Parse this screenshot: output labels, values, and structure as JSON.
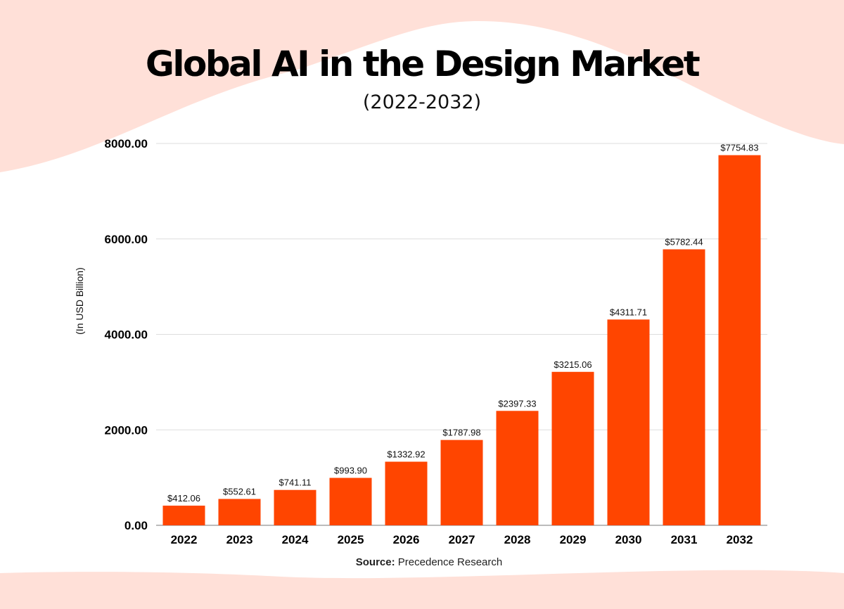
{
  "title": "Global AI in the Design Market",
  "subtitle": "(2022-2032)",
  "source_label": "Source:",
  "source_text": "Precedence Research",
  "colors": {
    "bar": "#FF4500",
    "background_accent": "#FFE0D8",
    "grid": "#DDDDDD"
  },
  "chart_data": {
    "type": "bar",
    "categories": [
      "2022",
      "2023",
      "2024",
      "2025",
      "2026",
      "2027",
      "2028",
      "2029",
      "2030",
      "2031",
      "2032"
    ],
    "values": [
      412.06,
      552.61,
      741.11,
      993.9,
      1332.92,
      1787.98,
      2397.33,
      3215.06,
      4311.71,
      5782.44,
      7754.83
    ],
    "data_labels": [
      "$412.06",
      "$552.61",
      "$741.11",
      "$993.90",
      "$1332.92",
      "$1787.98",
      "$2397.33",
      "$3215.06",
      "$4311.71",
      "$5782.44",
      "$7754.83"
    ],
    "ylabel": "(In USD Billion)",
    "xlabel": "",
    "ylim": [
      0,
      8000
    ],
    "yticks": [
      "0.00",
      "2000.00",
      "4000.00",
      "6000.00",
      "8000.00"
    ],
    "grid": true,
    "legend": "none"
  }
}
